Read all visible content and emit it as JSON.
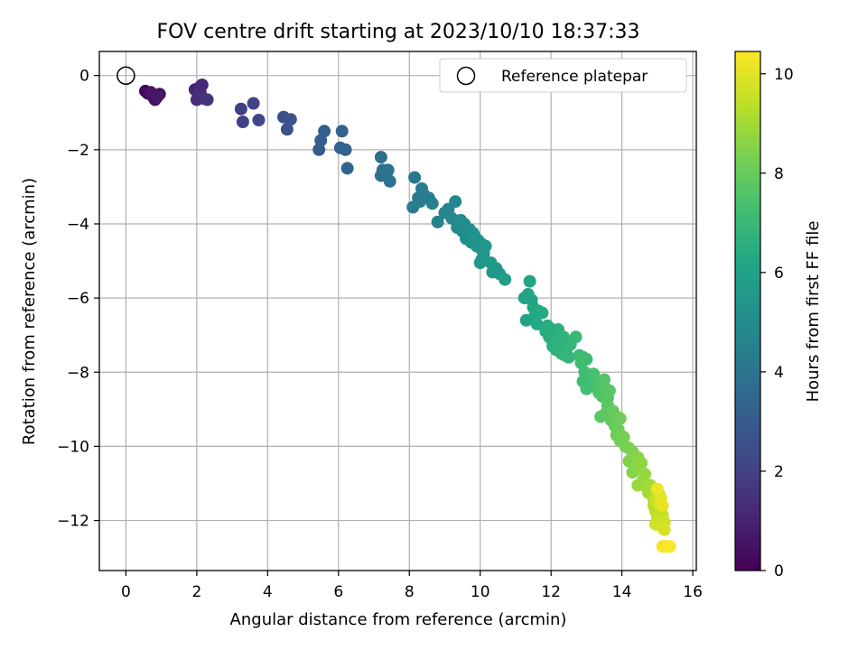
{
  "chart_data": {
    "type": "scatter",
    "title": "FOV centre drift starting at 2023/10/10 18:37:33",
    "xlabel": "Angular distance from reference (arcmin)",
    "ylabel": "Rotation from reference (arcmin)",
    "colorbar_label": "Hours from first FF file",
    "xlim": [
      -0.75,
      16.1
    ],
    "ylim": [
      -13.35,
      0.65
    ],
    "clim": [
      0,
      10.45
    ],
    "colormap": "viridis",
    "grid": true,
    "legend_position": "top-right",
    "x_ticks": [
      0,
      2,
      4,
      6,
      8,
      10,
      12,
      14,
      16
    ],
    "y_ticks": [
      0,
      -2,
      -4,
      -6,
      -8,
      -10,
      -12
    ],
    "colorbar_ticks": [
      0,
      2,
      4,
      6,
      8,
      10
    ],
    "reference": {
      "name": "Reference platepar",
      "x": 0,
      "y": 0
    },
    "series": [
      {
        "points": [
          [
            0.55,
            -0.42,
            0.1
          ],
          [
            0.62,
            -0.48,
            0.2
          ],
          [
            0.75,
            -0.55,
            0.3
          ],
          [
            0.82,
            -0.65,
            0.4
          ],
          [
            0.95,
            -0.5,
            0.5
          ],
          [
            0.7,
            -0.45,
            0.6
          ],
          [
            0.88,
            -0.58,
            0.7
          ],
          [
            1.95,
            -0.38,
            1.0
          ],
          [
            2.05,
            -0.55,
            1.1
          ],
          [
            2.1,
            -0.3,
            1.2
          ],
          [
            2.0,
            -0.65,
            1.3
          ],
          [
            2.2,
            -0.62,
            1.4
          ],
          [
            2.1,
            -0.45,
            1.5
          ],
          [
            2.3,
            -0.65,
            1.6
          ],
          [
            2.15,
            -0.25,
            1.2
          ],
          [
            3.25,
            -0.9,
            1.9
          ],
          [
            3.3,
            -1.25,
            2.0
          ],
          [
            3.6,
            -0.75,
            2.1
          ],
          [
            3.75,
            -1.2,
            2.2
          ],
          [
            4.45,
            -1.12,
            2.5
          ],
          [
            4.55,
            -1.45,
            2.6
          ],
          [
            4.65,
            -1.18,
            2.7
          ],
          [
            5.45,
            -2.0,
            3.0
          ],
          [
            5.5,
            -1.75,
            3.05
          ],
          [
            5.6,
            -1.5,
            3.1
          ],
          [
            6.1,
            -1.5,
            3.2
          ],
          [
            6.05,
            -1.95,
            3.25
          ],
          [
            6.2,
            -2.0,
            3.3
          ],
          [
            6.25,
            -2.5,
            3.4
          ],
          [
            7.2,
            -2.2,
            3.7
          ],
          [
            7.25,
            -2.55,
            3.75
          ],
          [
            7.2,
            -2.7,
            3.8
          ],
          [
            7.35,
            -2.65,
            3.85
          ],
          [
            7.4,
            -2.55,
            3.9
          ],
          [
            7.45,
            -2.85,
            3.95
          ],
          [
            8.15,
            -2.75,
            4.2
          ],
          [
            8.25,
            -3.3,
            4.3
          ],
          [
            8.1,
            -3.55,
            4.3
          ],
          [
            8.35,
            -3.05,
            4.35
          ],
          [
            8.4,
            -3.2,
            4.4
          ],
          [
            8.55,
            -3.3,
            4.45
          ],
          [
            8.65,
            -3.45,
            4.5
          ],
          [
            8.3,
            -3.4,
            4.4
          ],
          [
            8.8,
            -3.95,
            4.6
          ],
          [
            9.0,
            -3.7,
            4.7
          ],
          [
            9.1,
            -3.6,
            4.75
          ],
          [
            9.2,
            -3.85,
            4.8
          ],
          [
            9.3,
            -3.4,
            4.85
          ],
          [
            9.35,
            -4.1,
            4.9
          ],
          [
            9.45,
            -3.9,
            4.95
          ],
          [
            9.5,
            -4.2,
            5.0
          ],
          [
            9.55,
            -4.0,
            5.05
          ],
          [
            9.6,
            -4.4,
            5.1
          ],
          [
            9.65,
            -4.3,
            5.1
          ],
          [
            9.7,
            -4.15,
            5.15
          ],
          [
            9.75,
            -4.5,
            5.2
          ],
          [
            9.8,
            -4.25,
            5.2
          ],
          [
            9.85,
            -4.35,
            5.25
          ],
          [
            9.9,
            -4.6,
            5.3
          ],
          [
            9.95,
            -4.45,
            5.3
          ],
          [
            10.0,
            -4.65,
            5.35
          ],
          [
            10.05,
            -4.55,
            5.4
          ],
          [
            10.1,
            -4.8,
            5.4
          ],
          [
            10.15,
            -4.6,
            5.45
          ],
          [
            10.0,
            -5.05,
            5.5
          ],
          [
            10.05,
            -4.95,
            5.5
          ],
          [
            10.3,
            -5.05,
            5.55
          ],
          [
            10.35,
            -5.3,
            5.6
          ],
          [
            10.45,
            -5.2,
            5.65
          ],
          [
            10.55,
            -5.35,
            5.7
          ],
          [
            10.7,
            -5.5,
            5.75
          ],
          [
            10.4,
            -5.25,
            5.6
          ],
          [
            11.25,
            -6.0,
            6.0
          ],
          [
            11.3,
            -6.6,
            6.05
          ],
          [
            11.35,
            -5.9,
            6.1
          ],
          [
            11.4,
            -5.55,
            6.1
          ],
          [
            11.45,
            -6.05,
            6.15
          ],
          [
            11.5,
            -6.25,
            6.2
          ],
          [
            11.55,
            -6.45,
            6.25
          ],
          [
            11.6,
            -6.7,
            6.3
          ],
          [
            11.65,
            -6.35,
            6.3
          ],
          [
            11.75,
            -6.4,
            6.35
          ],
          [
            11.85,
            -6.9,
            6.4
          ],
          [
            11.9,
            -6.75,
            6.45
          ],
          [
            11.95,
            -7.05,
            6.5
          ],
          [
            12.0,
            -7.1,
            6.5
          ],
          [
            12.05,
            -7.3,
            6.55
          ],
          [
            12.1,
            -6.95,
            6.6
          ],
          [
            12.15,
            -7.4,
            6.6
          ],
          [
            12.2,
            -6.85,
            6.65
          ],
          [
            12.25,
            -7.2,
            6.7
          ],
          [
            12.3,
            -7.5,
            6.7
          ],
          [
            12.35,
            -7.05,
            6.75
          ],
          [
            12.4,
            -7.55,
            6.8
          ],
          [
            12.45,
            -7.35,
            6.8
          ],
          [
            12.5,
            -7.6,
            6.85
          ],
          [
            12.55,
            -7.25,
            6.9
          ],
          [
            12.3,
            -7.15,
            6.7
          ],
          [
            12.1,
            -7.25,
            6.6
          ],
          [
            11.95,
            -6.8,
            6.5
          ],
          [
            12.7,
            -7.05,
            7.0
          ],
          [
            12.8,
            -7.55,
            7.05
          ],
          [
            12.85,
            -7.75,
            7.1
          ],
          [
            12.9,
            -7.6,
            7.1
          ],
          [
            12.95,
            -8.0,
            7.15
          ],
          [
            13.0,
            -7.65,
            7.2
          ],
          [
            13.05,
            -8.2,
            7.25
          ],
          [
            13.1,
            -8.1,
            7.3
          ],
          [
            13.15,
            -8.3,
            7.3
          ],
          [
            13.2,
            -8.05,
            7.35
          ],
          [
            13.25,
            -8.4,
            7.4
          ],
          [
            13.3,
            -8.25,
            7.4
          ],
          [
            12.9,
            -8.25,
            7.2
          ],
          [
            13.0,
            -8.45,
            7.25
          ],
          [
            13.35,
            -8.55,
            7.45
          ],
          [
            13.4,
            -8.35,
            7.5
          ],
          [
            13.45,
            -8.65,
            7.55
          ],
          [
            13.5,
            -8.2,
            7.6
          ],
          [
            13.55,
            -8.45,
            7.6
          ],
          [
            13.6,
            -8.7,
            7.65
          ],
          [
            13.65,
            -8.5,
            7.7
          ],
          [
            13.6,
            -8.9,
            7.75
          ],
          [
            13.55,
            -9.1,
            7.8
          ],
          [
            13.4,
            -9.2,
            7.8
          ],
          [
            13.7,
            -9.3,
            7.9
          ],
          [
            13.75,
            -9.05,
            7.95
          ],
          [
            13.8,
            -9.45,
            8.0
          ],
          [
            13.85,
            -9.2,
            8.0
          ],
          [
            13.9,
            -9.55,
            8.05
          ],
          [
            13.95,
            -9.25,
            8.1
          ],
          [
            13.85,
            -9.7,
            8.1
          ],
          [
            13.95,
            -9.85,
            8.2
          ],
          [
            14.05,
            -9.75,
            8.25
          ],
          [
            14.1,
            -10.0,
            8.3
          ],
          [
            14.2,
            -10.05,
            8.35
          ],
          [
            14.3,
            -10.15,
            8.4
          ],
          [
            14.35,
            -10.35,
            8.45
          ],
          [
            14.2,
            -10.4,
            8.45
          ],
          [
            14.3,
            -10.7,
            8.5
          ],
          [
            14.4,
            -10.55,
            8.55
          ],
          [
            14.45,
            -10.3,
            8.6
          ],
          [
            14.5,
            -10.6,
            8.65
          ],
          [
            14.55,
            -10.45,
            8.7
          ],
          [
            14.6,
            -10.9,
            8.75
          ],
          [
            14.65,
            -10.75,
            8.8
          ],
          [
            14.45,
            -11.05,
            8.85
          ],
          [
            14.7,
            -11.1,
            8.9
          ],
          [
            14.75,
            -11.25,
            8.95
          ],
          [
            14.8,
            -11.05,
            9.0
          ],
          [
            14.85,
            -11.3,
            9.05
          ],
          [
            14.9,
            -11.45,
            9.1
          ],
          [
            14.95,
            -11.2,
            9.15
          ],
          [
            15.0,
            -11.5,
            9.2
          ],
          [
            15.05,
            -11.3,
            9.25
          ],
          [
            14.9,
            -11.6,
            9.3
          ],
          [
            14.95,
            -11.75,
            9.35
          ],
          [
            15.0,
            -11.9,
            9.4
          ],
          [
            15.1,
            -11.65,
            9.45
          ],
          [
            15.05,
            -12.0,
            9.5
          ],
          [
            15.15,
            -11.85,
            9.55
          ],
          [
            15.1,
            -12.1,
            9.6
          ],
          [
            15.2,
            -12.05,
            9.65
          ],
          [
            14.95,
            -12.1,
            9.7
          ],
          [
            15.15,
            -12.2,
            9.75
          ],
          [
            15.2,
            -12.25,
            9.8
          ],
          [
            14.95,
            -11.45,
            9.6
          ],
          [
            15.05,
            -11.55,
            9.8
          ],
          [
            15.1,
            -11.4,
            10.0
          ],
          [
            15.15,
            -11.6,
            10.1
          ],
          [
            15.0,
            -11.15,
            10.2
          ],
          [
            15.15,
            -12.7,
            10.3
          ],
          [
            15.25,
            -12.7,
            10.35
          ],
          [
            15.35,
            -12.7,
            10.4
          ]
        ]
      }
    ]
  }
}
